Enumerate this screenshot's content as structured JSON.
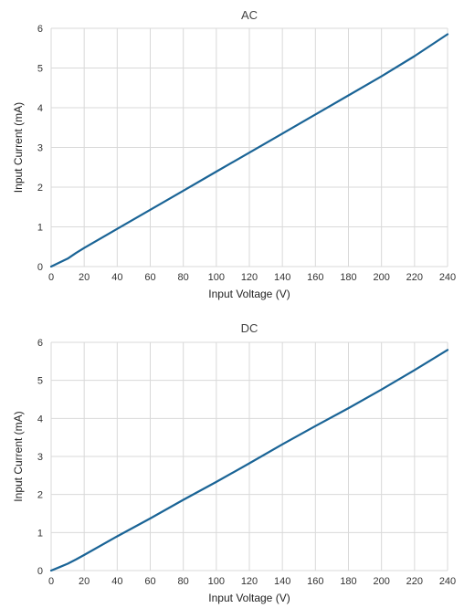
{
  "chart_data": [
    {
      "type": "line",
      "title": "AC",
      "xlabel": "Input Voltage (V)",
      "ylabel": "Input Current (mA)",
      "xlim": [
        0,
        240
      ],
      "ylim": [
        0,
        6
      ],
      "xticks": [
        0,
        20,
        40,
        60,
        80,
        100,
        120,
        140,
        160,
        180,
        200,
        220,
        240
      ],
      "yticks": [
        0,
        1,
        2,
        3,
        4,
        5,
        6
      ],
      "grid": true,
      "color": "#1a6496",
      "series": [
        {
          "x": [
            0,
            5,
            10,
            15,
            20,
            40,
            60,
            80,
            100,
            120,
            140,
            160,
            180,
            200,
            220,
            240
          ],
          "values": [
            0,
            0.1,
            0.2,
            0.34,
            0.47,
            0.95,
            1.43,
            1.91,
            2.39,
            2.87,
            3.35,
            3.83,
            4.31,
            4.79,
            5.3,
            5.85
          ]
        }
      ]
    },
    {
      "type": "line",
      "title": "DC",
      "xlabel": "Input Voltage (V)",
      "ylabel": "Input Current (mA)",
      "xlim": [
        0,
        240
      ],
      "ylim": [
        0,
        6
      ],
      "xticks": [
        0,
        20,
        40,
        60,
        80,
        100,
        120,
        140,
        160,
        180,
        200,
        220,
        240
      ],
      "yticks": [
        0,
        1,
        2,
        3,
        4,
        5,
        6
      ],
      "grid": true,
      "color": "#1a6496",
      "series": [
        {
          "x": [
            0,
            5,
            10,
            15,
            20,
            40,
            60,
            80,
            100,
            120,
            140,
            160,
            180,
            200,
            220,
            240
          ],
          "values": [
            0,
            0.09,
            0.18,
            0.29,
            0.41,
            0.9,
            1.37,
            1.86,
            2.33,
            2.82,
            3.32,
            3.8,
            4.27,
            4.76,
            5.27,
            5.8
          ]
        }
      ]
    }
  ]
}
